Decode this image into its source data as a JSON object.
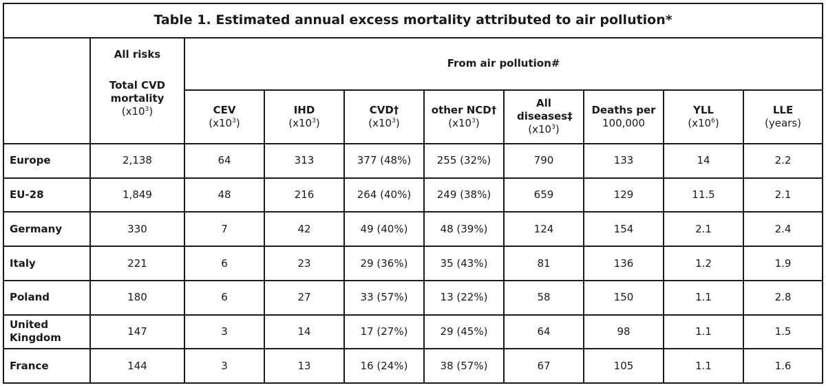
{
  "title": "Table 1. Estimated annual excess mortality attributed to air pollution*",
  "header": {
    "all_risks": "All risks",
    "from_air_pollution": "From air pollution#",
    "columns": [
      {
        "name": "Total CVD mortality",
        "unit": "(x10",
        "sup": "3",
        "unit_end": ")"
      },
      {
        "name": "CEV",
        "unit": "(x10",
        "sup": "3",
        "unit_end": ")"
      },
      {
        "name": "IHD",
        "unit": "(x10",
        "sup": "3",
        "unit_end": ")"
      },
      {
        "name": "CVD†",
        "unit": "(x10",
        "sup": "3",
        "unit_end": ")"
      },
      {
        "name": "other NCD†",
        "unit": "(x10",
        "sup": "3",
        "unit_end": ")"
      },
      {
        "name": "All diseases‡",
        "unit": "(x10",
        "sup": "3",
        "unit_end": ")"
      },
      {
        "name": "Deaths per",
        "unit": "100,000",
        "sup": "",
        "unit_end": ""
      },
      {
        "name": "YLL",
        "unit": "(x10",
        "sup": "6",
        "unit_end": ")"
      },
      {
        "name": "LLE",
        "unit": "(years)",
        "sup": "",
        "unit_end": ""
      }
    ]
  },
  "rows": [
    {
      "label": "Europe",
      "values": [
        "2,138",
        "64",
        "313",
        "377 (48%)",
        "255 (32%)",
        "790",
        "133",
        "14",
        "2.2"
      ]
    },
    {
      "label": "EU-28",
      "values": [
        "1,849",
        "48",
        "216",
        "264 (40%)",
        "249 (38%)",
        "659",
        "129",
        "11.5",
        "2.1"
      ]
    },
    {
      "label": "Germany",
      "values": [
        "330",
        "7",
        "42",
        "49 (40%)",
        "48 (39%)",
        "124",
        "154",
        "2.1",
        "2.4"
      ]
    },
    {
      "label": "Italy",
      "values": [
        "221",
        "6",
        "23",
        "29 (36%)",
        "35 (43%)",
        "81",
        "136",
        "1.2",
        "1.9"
      ]
    },
    {
      "label": "Poland",
      "values": [
        "180",
        "6",
        "27",
        "33 (57%)",
        "13 (22%)",
        "58",
        "150",
        "1.1",
        "2.8"
      ]
    },
    {
      "label": "United Kingdom",
      "values": [
        "147",
        "3",
        "14",
        "17 (27%)",
        "29 (45%)",
        "64",
        "98",
        "1.1",
        "1.5"
      ]
    },
    {
      "label": "France",
      "values": [
        "144",
        "3",
        "13",
        "16 (24%)",
        "38 (57%)",
        "67",
        "105",
        "1.1",
        "1.6"
      ]
    }
  ]
}
